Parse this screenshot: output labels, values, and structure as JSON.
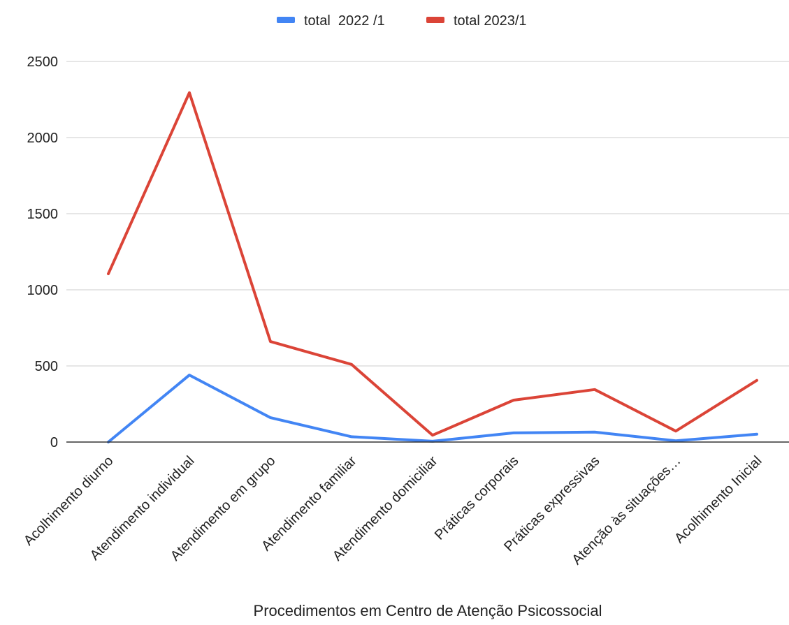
{
  "chart_data": {
    "type": "line",
    "title": "",
    "xlabel": "Procedimentos em Centro de Atenção Psicossocial",
    "ylabel": "",
    "categories": [
      "Acolhimento diurno",
      "Atendimento individual",
      "Atendimento em grupo",
      "Atendimento familiar",
      "Atendimento domiciliar",
      "Práticas corporais",
      "Práticas expressivas",
      "Atenção às situações…",
      "Acolhimento Inicial"
    ],
    "series": [
      {
        "name": "total  2022 /1",
        "color": "#4285f4",
        "values": [
          0,
          440,
          160,
          35,
          5,
          60,
          65,
          8,
          52
        ]
      },
      {
        "name": "total 2023/1",
        "color": "#db4437",
        "values": [
          1105,
          2295,
          660,
          510,
          45,
          275,
          345,
          72,
          405
        ]
      }
    ],
    "ylim": [
      0,
      2500
    ],
    "yticks": [
      0,
      500,
      1000,
      1500,
      2000,
      2500
    ],
    "grid": true,
    "legend_position": "top"
  }
}
